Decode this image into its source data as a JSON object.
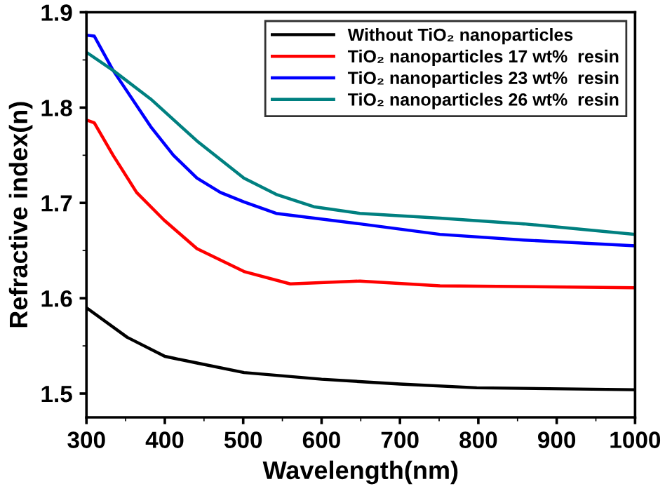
{
  "chart_data": {
    "type": "line",
    "xlabel": "Wavelength(nm)",
    "ylabel": "Refractive index(n)",
    "xlim": [
      300,
      1000
    ],
    "xticks": [
      300,
      400,
      500,
      600,
      700,
      800,
      900,
      1000
    ],
    "ylim": [
      1.475,
      1.9
    ],
    "yticks": [
      1.5,
      1.6,
      1.7,
      1.8,
      1.9
    ],
    "grid": false,
    "legend": "top right",
    "marker": "none",
    "line_style": "solid",
    "series": [
      {
        "name": "Without TiO₂ nanoparticles",
        "color": "#000000",
        "x": [
          300,
          352,
          400,
          441,
          501,
          600,
          700,
          798,
          1000
        ],
        "values": [
          1.59,
          1.559,
          1.539,
          1.532,
          1.522,
          1.515,
          1.51,
          1.506,
          1.504
        ]
      },
      {
        "name": "TiO₂ nanoparticles 17 wt%  resin",
        "color": "#ff0000",
        "x": [
          300,
          310,
          334,
          364,
          399,
          441,
          501,
          560,
          649,
          751,
          1000
        ],
        "values": [
          1.787,
          1.784,
          1.75,
          1.711,
          1.682,
          1.652,
          1.628,
          1.615,
          1.618,
          1.613,
          1.611
        ]
      },
      {
        "name": "TiO₂ nanoparticles 23 wt%  resin",
        "color": "#0000ff",
        "x": [
          300,
          310,
          334,
          382,
          411,
          441,
          471,
          501,
          542,
          649,
          751,
          858,
          1000
        ],
        "values": [
          1.876,
          1.875,
          1.839,
          1.78,
          1.75,
          1.726,
          1.711,
          1.701,
          1.689,
          1.678,
          1.667,
          1.661,
          1.655
        ]
      },
      {
        "name": "TiO₂ nanoparticles 26 wt%  resin",
        "color": "#008080",
        "x": [
          300,
          334,
          382,
          441,
          501,
          542,
          590,
          649,
          751,
          858,
          1000
        ],
        "values": [
          1.858,
          1.839,
          1.809,
          1.765,
          1.726,
          1.709,
          1.696,
          1.689,
          1.684,
          1.678,
          1.667
        ]
      }
    ]
  }
}
